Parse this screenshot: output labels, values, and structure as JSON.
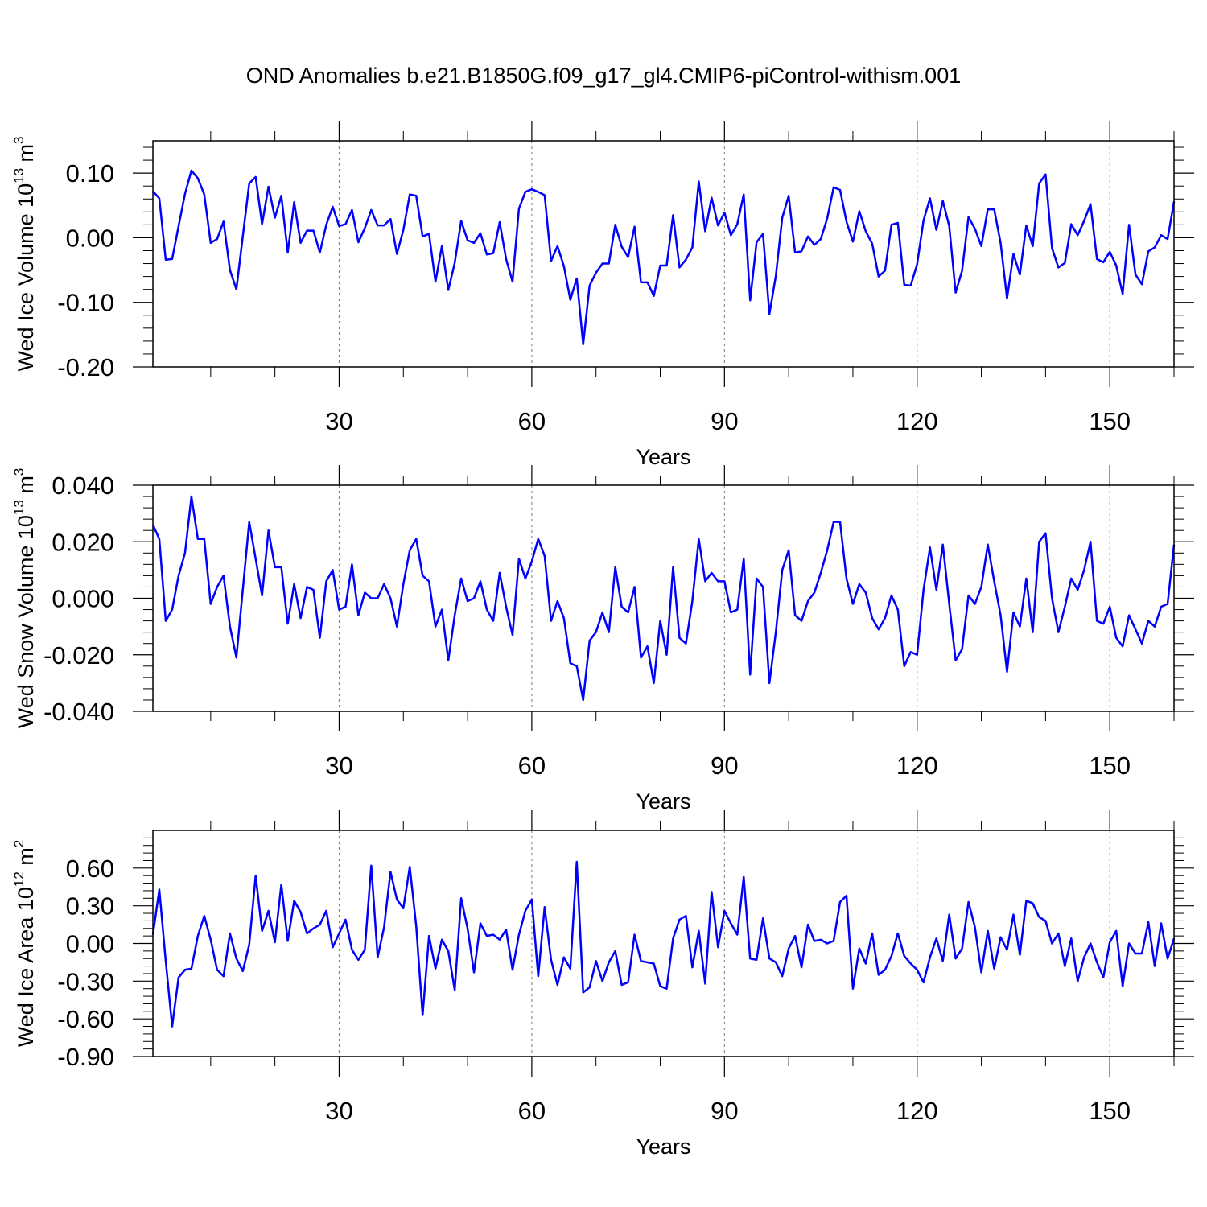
{
  "chart_data": [
    {
      "type": "line",
      "title": "OND Anomalies b.e21.B1850G.f09_g17_gl4.CMIP6-piControl-withism.001",
      "xlabel": "Years",
      "ylabel": [
        "Wed Ice Volume 10",
        "13",
        " m",
        "3"
      ],
      "color": "#0000ff",
      "xgrid": true,
      "xlim": [
        1,
        160
      ],
      "xticks": [
        30,
        60,
        90,
        120,
        150
      ],
      "xminorticks": [
        10,
        20,
        40,
        50,
        70,
        80,
        100,
        110,
        130,
        140,
        160
      ],
      "ylim": [
        -0.2,
        0.15
      ],
      "yticks": [
        {
          "value": -0.2,
          "label": "-0.20"
        },
        {
          "value": -0.1,
          "label": "-0.10"
        },
        {
          "value": 0,
          "label": "0.00"
        },
        {
          "value": 0.1,
          "label": "0.10"
        }
      ],
      "yminorticks": [
        -0.18,
        -0.16,
        -0.14,
        -0.12,
        -0.08,
        -0.06,
        -0.04,
        -0.02,
        0.02,
        0.04,
        0.06,
        0.08,
        0.12,
        0.14
      ],
      "x": [
        1,
        2,
        3,
        4,
        5,
        6,
        7,
        8,
        9,
        10,
        11,
        12,
        13,
        14,
        15,
        16,
        17,
        18,
        19,
        20,
        21,
        22,
        23,
        24,
        25,
        26,
        27,
        28,
        29,
        30,
        31,
        32,
        33,
        34,
        35,
        36,
        37,
        38,
        39,
        40,
        41,
        42,
        43,
        44,
        45,
        46,
        47,
        48,
        49,
        50,
        51,
        52,
        53,
        54,
        55,
        56,
        57,
        58,
        59,
        60,
        61,
        62,
        63,
        64,
        65,
        66,
        67,
        68,
        69,
        70,
        71,
        72,
        73,
        74,
        75,
        76,
        77,
        78,
        79,
        80,
        81,
        82,
        83,
        84,
        85,
        86,
        87,
        88,
        89,
        90,
        91,
        92,
        93,
        94,
        95,
        96,
        97,
        98,
        99,
        100,
        101,
        102,
        103,
        104,
        105,
        106,
        107,
        108,
        109,
        110,
        111,
        112,
        113,
        114,
        115,
        116,
        117,
        118,
        119,
        120,
        121,
        122,
        123,
        124,
        125,
        126,
        127,
        128,
        129,
        130,
        131,
        132,
        133,
        134,
        135,
        136,
        137,
        138,
        139,
        140,
        141,
        142,
        143,
        144,
        145,
        146,
        147,
        148,
        149,
        150,
        151,
        152,
        153,
        154,
        155,
        156,
        157,
        158,
        159,
        160
      ],
      "values": [
        0.072,
        0.061,
        -0.034,
        -0.033,
        0.018,
        0.068,
        0.104,
        0.092,
        0.067,
        -0.008,
        -0.002,
        0.025,
        -0.05,
        -0.08,
        0.002,
        0.084,
        0.094,
        0.021,
        0.079,
        0.031,
        0.065,
        -0.023,
        0.055,
        -0.008,
        0.011,
        0.011,
        -0.023,
        0.02,
        0.048,
        0.018,
        0.021,
        0.043,
        -0.007,
        0.015,
        0.043,
        0.019,
        0.019,
        0.029,
        -0.025,
        0.012,
        0.067,
        0.065,
        0.002,
        0.006,
        -0.068,
        -0.013,
        -0.081,
        -0.039,
        0.026,
        -0.004,
        -0.008,
        0.007,
        -0.026,
        -0.024,
        0.024,
        -0.033,
        -0.068,
        0.045,
        0.071,
        0.075,
        0.071,
        0.066,
        -0.036,
        -0.013,
        -0.044,
        -0.096,
        -0.063,
        -0.165,
        -0.074,
        -0.054,
        -0.04,
        -0.04,
        0.02,
        -0.014,
        -0.03,
        0.017,
        -0.069,
        -0.069,
        -0.09,
        -0.043,
        -0.043,
        0.035,
        -0.046,
        -0.034,
        -0.015,
        0.087,
        0.01,
        0.062,
        0.019,
        0.039,
        0.004,
        0.021,
        0.067,
        -0.097,
        -0.007,
        0.006,
        -0.118,
        -0.059,
        0.031,
        0.065,
        -0.023,
        -0.021,
        0.002,
        -0.011,
        -0.002,
        0.03,
        0.078,
        0.074,
        0.025,
        -0.006,
        0.041,
        0.01,
        -0.009,
        -0.06,
        -0.051,
        0.02,
        0.023,
        -0.073,
        -0.074,
        -0.041,
        0.027,
        0.061,
        0.012,
        0.057,
        0.018,
        -0.085,
        -0.051,
        0.032,
        0.014,
        -0.013,
        0.044,
        0.044,
        -0.008,
        -0.094,
        -0.025,
        -0.057,
        0.019,
        -0.013,
        0.084,
        0.098,
        -0.016,
        -0.046,
        -0.039,
        0.021,
        0.004,
        0.026,
        0.052,
        -0.033,
        -0.038,
        -0.022,
        -0.043,
        -0.087,
        0.02,
        -0.057,
        -0.072,
        -0.021,
        -0.015,
        0.004,
        -0.002,
        0.056
      ]
    },
    {
      "type": "line",
      "xlabel": "Years",
      "ylabel": [
        "Wed Snow Volume 10",
        "13",
        " m",
        "3"
      ],
      "color": "#0000ff",
      "xgrid": true,
      "xlim": [
        1,
        160
      ],
      "xticks": [
        30,
        60,
        90,
        120,
        150
      ],
      "xminorticks": [
        10,
        20,
        40,
        50,
        70,
        80,
        100,
        110,
        130,
        140,
        160
      ],
      "ylim": [
        -0.04,
        0.04
      ],
      "yticks": [
        {
          "value": -0.04,
          "label": "-0.040"
        },
        {
          "value": -0.02,
          "label": "-0.020"
        },
        {
          "value": 0,
          "label": "0.000"
        },
        {
          "value": 0.02,
          "label": "0.020"
        },
        {
          "value": 0.04,
          "label": "0.040"
        }
      ],
      "yminorticks": [
        -0.036,
        -0.032,
        -0.028,
        -0.024,
        -0.016,
        -0.012,
        -0.008,
        -0.004,
        0.004,
        0.008,
        0.012,
        0.016,
        0.024,
        0.028,
        0.032,
        0.036
      ],
      "x": [
        1,
        2,
        3,
        4,
        5,
        6,
        7,
        8,
        9,
        10,
        11,
        12,
        13,
        14,
        15,
        16,
        17,
        18,
        19,
        20,
        21,
        22,
        23,
        24,
        25,
        26,
        27,
        28,
        29,
        30,
        31,
        32,
        33,
        34,
        35,
        36,
        37,
        38,
        39,
        40,
        41,
        42,
        43,
        44,
        45,
        46,
        47,
        48,
        49,
        50,
        51,
        52,
        53,
        54,
        55,
        56,
        57,
        58,
        59,
        60,
        61,
        62,
        63,
        64,
        65,
        66,
        67,
        68,
        69,
        70,
        71,
        72,
        73,
        74,
        75,
        76,
        77,
        78,
        79,
        80,
        81,
        82,
        83,
        84,
        85,
        86,
        87,
        88,
        89,
        90,
        91,
        92,
        93,
        94,
        95,
        96,
        97,
        98,
        99,
        100,
        101,
        102,
        103,
        104,
        105,
        106,
        107,
        108,
        109,
        110,
        111,
        112,
        113,
        114,
        115,
        116,
        117,
        118,
        119,
        120,
        121,
        122,
        123,
        124,
        125,
        126,
        127,
        128,
        129,
        130,
        131,
        132,
        133,
        134,
        135,
        136,
        137,
        138,
        139,
        140,
        141,
        142,
        143,
        144,
        145,
        146,
        147,
        148,
        149,
        150,
        151,
        152,
        153,
        154,
        155,
        156,
        157,
        158,
        159,
        160
      ],
      "values": [
        0.026,
        0.021,
        -0.008,
        -0.004,
        0.008,
        0.016,
        0.036,
        0.021,
        0.021,
        -0.002,
        0.004,
        0.008,
        -0.01,
        -0.021,
        0.003,
        0.027,
        0.014,
        0.001,
        0.024,
        0.011,
        0.011,
        -0.009,
        0.005,
        -0.007,
        0.004,
        0.003,
        -0.014,
        0.006,
        0.01,
        -0.004,
        -0.003,
        0.012,
        -0.006,
        0.002,
        0,
        0,
        0.005,
        0,
        -0.01,
        0.005,
        0.017,
        0.021,
        0.008,
        0.006,
        -0.01,
        -0.004,
        -0.022,
        -0.006,
        0.007,
        -0.001,
        0,
        0.006,
        -0.004,
        -0.008,
        0.009,
        -0.003,
        -0.013,
        0.014,
        0.007,
        0.013,
        0.021,
        0.015,
        -0.008,
        -0.001,
        -0.007,
        -0.023,
        -0.024,
        -0.036,
        -0.015,
        -0.012,
        -0.005,
        -0.012,
        0.011,
        -0.003,
        -0.005,
        0.004,
        -0.021,
        -0.017,
        -0.03,
        -0.008,
        -0.02,
        0.011,
        -0.014,
        -0.016,
        -0.001,
        0.021,
        0.006,
        0.009,
        0.006,
        0.006,
        -0.005,
        -0.004,
        0.014,
        -0.027,
        0.007,
        0.004,
        -0.03,
        -0.012,
        0.01,
        0.017,
        -0.006,
        -0.008,
        -0.001,
        0.002,
        0.009,
        0.017,
        0.027,
        0.027,
        0.007,
        -0.002,
        0.005,
        0.002,
        -0.007,
        -0.011,
        -0.007,
        0.001,
        -0.004,
        -0.024,
        -0.019,
        -0.02,
        0.003,
        0.018,
        0.003,
        0.019,
        -0.002,
        -0.022,
        -0.018,
        0.001,
        -0.002,
        0.004,
        0.019,
        0.006,
        -0.006,
        -0.026,
        -0.005,
        -0.01,
        0.007,
        -0.012,
        0.02,
        0.023,
        0,
        -0.012,
        -0.003,
        0.007,
        0.003,
        0.01,
        0.02,
        -0.008,
        -0.009,
        -0.003,
        -0.014,
        -0.017,
        -0.006,
        -0.011,
        -0.016,
        -0.008,
        -0.01,
        -0.003,
        -0.002,
        0.019
      ]
    },
    {
      "type": "line",
      "xlabel": "Years",
      "ylabel": [
        "Wed Ice Area 10",
        "12",
        " m",
        "2"
      ],
      "color": "#0000ff",
      "xgrid": true,
      "xlim": [
        1,
        160
      ],
      "xticks": [
        30,
        60,
        90,
        120,
        150
      ],
      "xminorticks": [
        10,
        20,
        40,
        50,
        70,
        80,
        100,
        110,
        130,
        140,
        160
      ],
      "ylim": [
        -0.9,
        0.9
      ],
      "yticks": [
        {
          "value": -0.9,
          "label": "-0.90"
        },
        {
          "value": -0.6,
          "label": "-0.60"
        },
        {
          "value": -0.3,
          "label": "-0.30"
        },
        {
          "value": 0,
          "label": "0.00"
        },
        {
          "value": 0.3,
          "label": "0.30"
        },
        {
          "value": 0.6,
          "label": "0.60"
        }
      ],
      "yminorticks": [
        -0.84,
        -0.78,
        -0.72,
        -0.66,
        -0.54,
        -0.48,
        -0.42,
        -0.36,
        -0.24,
        -0.18,
        -0.12,
        -0.06,
        0.06,
        0.12,
        0.18,
        0.24,
        0.36,
        0.42,
        0.48,
        0.54,
        0.66,
        0.72,
        0.78,
        0.84
      ],
      "x": [
        1,
        2,
        3,
        4,
        5,
        6,
        7,
        8,
        9,
        10,
        11,
        12,
        13,
        14,
        15,
        16,
        17,
        18,
        19,
        20,
        21,
        22,
        23,
        24,
        25,
        26,
        27,
        28,
        29,
        30,
        31,
        32,
        33,
        34,
        35,
        36,
        37,
        38,
        39,
        40,
        41,
        42,
        43,
        44,
        45,
        46,
        47,
        48,
        49,
        50,
        51,
        52,
        53,
        54,
        55,
        56,
        57,
        58,
        59,
        60,
        61,
        62,
        63,
        64,
        65,
        66,
        67,
        68,
        69,
        70,
        71,
        72,
        73,
        74,
        75,
        76,
        77,
        78,
        79,
        80,
        81,
        82,
        83,
        84,
        85,
        86,
        87,
        88,
        89,
        90,
        91,
        92,
        93,
        94,
        95,
        96,
        97,
        98,
        99,
        100,
        101,
        102,
        103,
        104,
        105,
        106,
        107,
        108,
        109,
        110,
        111,
        112,
        113,
        114,
        115,
        116,
        117,
        118,
        119,
        120,
        121,
        122,
        123,
        124,
        125,
        126,
        127,
        128,
        129,
        130,
        131,
        132,
        133,
        134,
        135,
        136,
        137,
        138,
        139,
        140,
        141,
        142,
        143,
        144,
        145,
        146,
        147,
        148,
        149,
        150,
        151,
        152,
        153,
        154,
        155,
        156,
        157,
        158,
        159,
        160
      ],
      "values": [
        0.07,
        0.43,
        -0.14,
        -0.66,
        -0.27,
        -0.21,
        -0.2,
        0.06,
        0.22,
        0.03,
        -0.21,
        -0.26,
        0.08,
        -0.12,
        -0.22,
        -0.01,
        0.54,
        0.1,
        0.26,
        0.01,
        0.47,
        0.02,
        0.34,
        0.25,
        0.08,
        0.12,
        0.15,
        0.26,
        -0.03,
        0.08,
        0.19,
        -0.05,
        -0.13,
        -0.05,
        0.62,
        -0.11,
        0.13,
        0.57,
        0.35,
        0.28,
        0.61,
        0.14,
        -0.57,
        0.06,
        -0.2,
        0.03,
        -0.06,
        -0.37,
        0.36,
        0.12,
        -0.23,
        0.16,
        0.06,
        0.07,
        0.03,
        0.11,
        -0.21,
        0.07,
        0.26,
        0.35,
        -0.26,
        0.29,
        -0.13,
        -0.33,
        -0.11,
        -0.2,
        0.65,
        -0.39,
        -0.35,
        -0.14,
        -0.3,
        -0.15,
        -0.06,
        -0.33,
        -0.31,
        0.07,
        -0.14,
        -0.15,
        -0.16,
        -0.34,
        -0.36,
        0.04,
        0.19,
        0.22,
        -0.19,
        0.1,
        -0.32,
        0.41,
        -0.03,
        0.26,
        0.16,
        0.07,
        0.53,
        -0.12,
        -0.13,
        0.2,
        -0.12,
        -0.15,
        -0.26,
        -0.04,
        0.06,
        -0.19,
        0.15,
        0.02,
        0.03,
        0,
        0.02,
        0.33,
        0.38,
        -0.36,
        -0.04,
        -0.16,
        0.08,
        -0.25,
        -0.21,
        -0.1,
        0.08,
        -0.1,
        -0.16,
        -0.21,
        -0.31,
        -0.11,
        0.04,
        -0.14,
        0.23,
        -0.12,
        -0.04,
        0.33,
        0.13,
        -0.23,
        0.1,
        -0.2,
        0.05,
        -0.05,
        0.23,
        -0.09,
        0.34,
        0.32,
        0.21,
        0.18,
        0,
        0.08,
        -0.18,
        0.04,
        -0.3,
        -0.11,
        0,
        -0.15,
        -0.27,
        0.01,
        0.1,
        -0.34,
        0,
        -0.08,
        -0.08,
        0.17,
        -0.18,
        0.16,
        -0.12,
        0.04
      ]
    }
  ]
}
